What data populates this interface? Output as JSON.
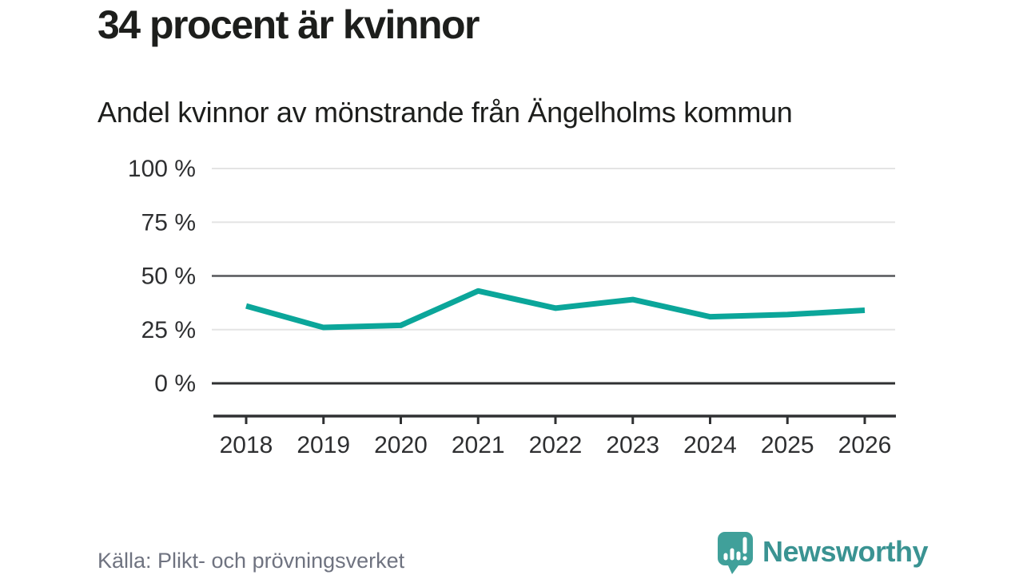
{
  "header": {
    "title": "34 procent är kvinnor",
    "subtitle": "Andel kvinnor av mönstrande från Ängelholms kommun"
  },
  "footer": {
    "source": "Källa: Plikt- och prövningsverket",
    "brand": "Newsworthy"
  },
  "icons": {
    "logo": "newsworthy-speech-bubble-bar-chart-with-exclamation"
  },
  "colors": {
    "line": "#0ba69a",
    "grid_light": "#e4e4e4",
    "grid_dark": "#55565a",
    "axis": "#2f3032",
    "text_dark": "#1d1e1c",
    "text_muted": "#6f7380",
    "brand_teal": "#3a9392",
    "logo_bubble": "#40a09a"
  },
  "chart_data": {
    "type": "line",
    "title": "34 procent är kvinnor",
    "subtitle": "Andel kvinnor av mönstrande från Ängelholms kommun",
    "categories": [
      "2018",
      "2019",
      "2020",
      "2021",
      "2022",
      "2023",
      "2024",
      "2025",
      "2026"
    ],
    "series": [
      {
        "name": "Andel kvinnor av mönstrande",
        "values": [
          36,
          26,
          27,
          43,
          35,
          39,
          31,
          32,
          34
        ]
      }
    ],
    "unit": "%",
    "xlabel": "",
    "ylabel": "",
    "ylim": [
      0,
      100
    ],
    "yticks": [
      0,
      25,
      50,
      75,
      100
    ],
    "ytick_labels": [
      "0 %",
      "25 %",
      "50 %",
      "75 %",
      "100 %"
    ],
    "emphasized_gridlines": [
      0,
      50
    ],
    "grid": true,
    "legend": "none"
  }
}
